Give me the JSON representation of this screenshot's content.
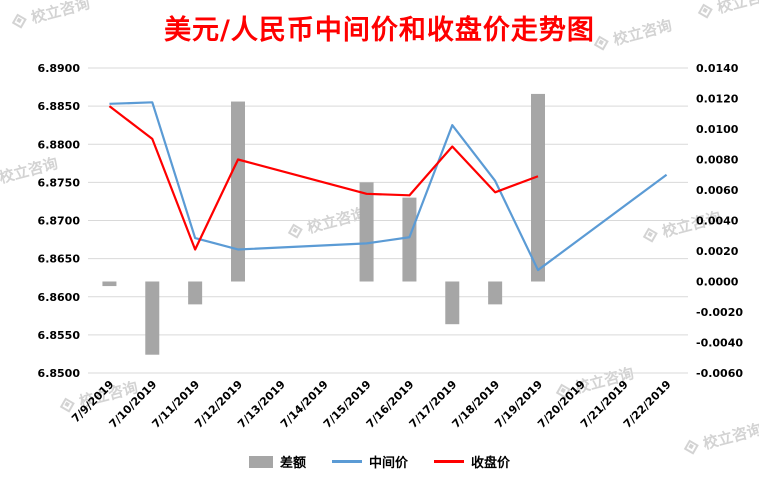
{
  "watermark_text": "校立咨询",
  "colors": {
    "title": "#ff0000",
    "bar": "#a6a6a6",
    "mid_line": "#5b9bd5",
    "close_line": "#ff0000",
    "grid": "#d9d9d9",
    "axis_text": "#000000",
    "watermark": "#bdbdbd"
  },
  "chart_data": {
    "type": "combo-bar-line",
    "title": "美元/人民币中间价和收盘价走势图",
    "categories": [
      "7/9/2019",
      "7/10/2019",
      "7/11/2019",
      "7/12/2019",
      "7/13/2019",
      "7/14/2019",
      "7/15/2019",
      "7/16/2019",
      "7/17/2019",
      "7/18/2019",
      "7/19/2019",
      "7/20/2019",
      "7/21/2019",
      "7/22/2019"
    ],
    "series": [
      {
        "name": "差额",
        "type": "bar",
        "axis": "right",
        "color": "#a6a6a6",
        "values": [
          -0.0003,
          -0.0048,
          -0.0015,
          0.0118,
          null,
          null,
          0.0065,
          0.0055,
          -0.0028,
          -0.0015,
          0.0123,
          null,
          null,
          null
        ]
      },
      {
        "name": "中间价",
        "type": "line",
        "axis": "left",
        "color": "#5b9bd5",
        "values": [
          6.8853,
          6.8855,
          6.8677,
          6.8662,
          null,
          null,
          6.867,
          6.8678,
          6.8825,
          6.8752,
          6.8635,
          null,
          null,
          6.876
        ]
      },
      {
        "name": "收盘价",
        "type": "line",
        "axis": "left",
        "color": "#ff0000",
        "values": [
          6.885,
          6.8807,
          6.8662,
          6.878,
          null,
          null,
          6.8735,
          6.8733,
          6.8797,
          6.8737,
          6.8758,
          null,
          null,
          null
        ]
      }
    ],
    "left_axis": {
      "min": 6.85,
      "max": 6.89,
      "tick_labels": [
        "6.8900",
        "6.8850",
        "6.8800",
        "6.8750",
        "6.8700",
        "6.8650",
        "6.8600",
        "6.8550",
        "6.8500"
      ]
    },
    "right_axis": {
      "min": -0.006,
      "max": 0.014,
      "tick_labels": [
        "0.0140",
        "0.0120",
        "0.0100",
        "0.0080",
        "0.0060",
        "0.0040",
        "0.0020",
        "0.0000",
        "-0.0020",
        "-0.0040",
        "-0.0060"
      ]
    },
    "grid": true,
    "legend_position": "bottom"
  }
}
